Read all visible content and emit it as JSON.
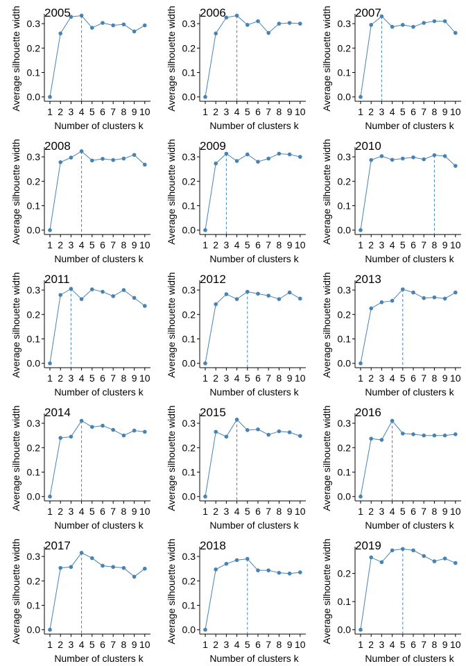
{
  "chart_data": [
    {
      "type": "line",
      "title": "2005",
      "xlabel": "Number of clusters k",
      "ylabel": "Average silhouette width",
      "x": [
        1,
        2,
        3,
        4,
        5,
        6,
        7,
        8,
        9,
        10
      ],
      "values": [
        0.0,
        0.26,
        0.328,
        0.333,
        0.283,
        0.303,
        0.293,
        0.297,
        0.268,
        0.293
      ],
      "ylim": [
        -0.015,
        0.34
      ],
      "yticks": [
        "0.0",
        "0.1",
        "0.2",
        "0.3"
      ],
      "optimal_k": 4
    },
    {
      "type": "line",
      "title": "2006",
      "xlabel": "Number of clusters k",
      "ylabel": "Average silhouette width",
      "x": [
        1,
        2,
        3,
        4,
        5,
        6,
        7,
        8,
        9,
        10
      ],
      "values": [
        0.0,
        0.26,
        0.325,
        0.333,
        0.295,
        0.31,
        0.262,
        0.3,
        0.303,
        0.3
      ],
      "ylim": [
        -0.015,
        0.34
      ],
      "yticks": [
        "0.0",
        "0.1",
        "0.2",
        "0.3"
      ],
      "optimal_k": 4
    },
    {
      "type": "line",
      "title": "2007",
      "xlabel": "Number of clusters k",
      "ylabel": "Average silhouette width",
      "x": [
        1,
        2,
        3,
        4,
        5,
        6,
        7,
        8,
        9,
        10
      ],
      "values": [
        0.0,
        0.295,
        0.33,
        0.287,
        0.295,
        0.287,
        0.303,
        0.31,
        0.31,
        0.262
      ],
      "ylim": [
        -0.015,
        0.34
      ],
      "yticks": [
        "0.0",
        "0.1",
        "0.2",
        "0.3"
      ],
      "optimal_k": 3
    },
    {
      "type": "line",
      "title": "2008",
      "xlabel": "Number of clusters k",
      "ylabel": "Average silhouette width",
      "x": [
        1,
        2,
        3,
        4,
        5,
        6,
        7,
        8,
        9,
        10
      ],
      "values": [
        0.0,
        0.278,
        0.297,
        0.323,
        0.285,
        0.292,
        0.287,
        0.293,
        0.308,
        0.268
      ],
      "ylim": [
        -0.015,
        0.34
      ],
      "yticks": [
        "0.0",
        "0.1",
        "0.2",
        "0.3"
      ],
      "optimal_k": 4
    },
    {
      "type": "line",
      "title": "2009",
      "xlabel": "Number of clusters k",
      "ylabel": "Average silhouette width",
      "x": [
        1,
        2,
        3,
        4,
        5,
        6,
        7,
        8,
        9,
        10
      ],
      "values": [
        0.0,
        0.273,
        0.313,
        0.283,
        0.31,
        0.28,
        0.293,
        0.313,
        0.31,
        0.3
      ],
      "ylim": [
        -0.015,
        0.34
      ],
      "yticks": [
        "0.0",
        "0.1",
        "0.2",
        "0.3"
      ],
      "optimal_k": 3
    },
    {
      "type": "line",
      "title": "2010",
      "xlabel": "Number of clusters k",
      "ylabel": "Average silhouette width",
      "x": [
        1,
        2,
        3,
        4,
        5,
        6,
        7,
        8,
        9,
        10
      ],
      "values": [
        0.0,
        0.287,
        0.303,
        0.288,
        0.293,
        0.298,
        0.29,
        0.307,
        0.303,
        0.263
      ],
      "ylim": [
        -0.015,
        0.34
      ],
      "yticks": [
        "0.0",
        "0.1",
        "0.2",
        "0.3"
      ],
      "optimal_k": 8
    },
    {
      "type": "line",
      "title": "2011",
      "xlabel": "Number of clusters k",
      "ylabel": "Average silhouette width",
      "x": [
        1,
        2,
        3,
        4,
        5,
        6,
        7,
        8,
        9,
        10
      ],
      "values": [
        0.0,
        0.28,
        0.305,
        0.263,
        0.303,
        0.293,
        0.275,
        0.3,
        0.268,
        0.235
      ],
      "ylim": [
        -0.015,
        0.34
      ],
      "yticks": [
        "0.0",
        "0.1",
        "0.2",
        "0.3"
      ],
      "optimal_k": 3
    },
    {
      "type": "line",
      "title": "2012",
      "xlabel": "Number of clusters k",
      "ylabel": "Average silhouette width",
      "x": [
        1,
        2,
        3,
        4,
        5,
        6,
        7,
        8,
        9,
        10
      ],
      "values": [
        0.0,
        0.242,
        0.283,
        0.263,
        0.293,
        0.285,
        0.277,
        0.263,
        0.29,
        0.265
      ],
      "ylim": [
        -0.015,
        0.34
      ],
      "yticks": [
        "0.0",
        "0.1",
        "0.2",
        "0.3"
      ],
      "optimal_k": 5
    },
    {
      "type": "line",
      "title": "2013",
      "xlabel": "Number of clusters k",
      "ylabel": "Average silhouette width",
      "x": [
        1,
        2,
        3,
        4,
        5,
        6,
        7,
        8,
        9,
        10
      ],
      "values": [
        0.0,
        0.225,
        0.25,
        0.256,
        0.303,
        0.29,
        0.267,
        0.27,
        0.265,
        0.29
      ],
      "ylim": [
        -0.015,
        0.34
      ],
      "yticks": [
        "0.0",
        "0.1",
        "0.2",
        "0.3"
      ],
      "optimal_k": 5
    },
    {
      "type": "line",
      "title": "2014",
      "xlabel": "Number of clusters k",
      "ylabel": "Average silhouette width",
      "x": [
        1,
        2,
        3,
        4,
        5,
        6,
        7,
        8,
        9,
        10
      ],
      "values": [
        0.0,
        0.24,
        0.245,
        0.31,
        0.285,
        0.29,
        0.273,
        0.25,
        0.27,
        0.265
      ],
      "ylim": [
        -0.015,
        0.34
      ],
      "yticks": [
        "0.0",
        "0.1",
        "0.2",
        "0.3"
      ],
      "optimal_k": 4
    },
    {
      "type": "line",
      "title": "2015",
      "xlabel": "Number of clusters k",
      "ylabel": "Average silhouette width",
      "x": [
        1,
        2,
        3,
        4,
        5,
        6,
        7,
        8,
        9,
        10
      ],
      "values": [
        0.0,
        0.265,
        0.245,
        0.315,
        0.272,
        0.275,
        0.253,
        0.267,
        0.263,
        0.248
      ],
      "ylim": [
        -0.015,
        0.34
      ],
      "yticks": [
        "0.0",
        "0.1",
        "0.2",
        "0.3"
      ],
      "optimal_k": 4
    },
    {
      "type": "line",
      "title": "2016",
      "xlabel": "Number of clusters k",
      "ylabel": "Average silhouette width",
      "x": [
        1,
        2,
        3,
        4,
        5,
        6,
        7,
        8,
        9,
        10
      ],
      "values": [
        0.0,
        0.237,
        0.232,
        0.31,
        0.258,
        0.255,
        0.25,
        0.25,
        0.25,
        0.255
      ],
      "ylim": [
        -0.015,
        0.34
      ],
      "yticks": [
        "0.0",
        "0.1",
        "0.2",
        "0.3"
      ],
      "optimal_k": 4
    },
    {
      "type": "line",
      "title": "2017",
      "xlabel": "Number of clusters k",
      "ylabel": "Average silhouette width",
      "x": [
        1,
        2,
        3,
        4,
        5,
        6,
        7,
        8,
        9,
        10
      ],
      "values": [
        0.0,
        0.253,
        0.257,
        0.315,
        0.293,
        0.262,
        0.257,
        0.253,
        0.217,
        0.25
      ],
      "ylim": [
        -0.015,
        0.34
      ],
      "yticks": [
        "0.0",
        "0.1",
        "0.2",
        "0.3"
      ],
      "optimal_k": 4
    },
    {
      "type": "line",
      "title": "2018",
      "xlabel": "Number of clusters k",
      "ylabel": "Average silhouette width",
      "x": [
        1,
        2,
        3,
        4,
        5,
        6,
        7,
        8,
        9,
        10
      ],
      "values": [
        0.0,
        0.247,
        0.27,
        0.285,
        0.29,
        0.243,
        0.243,
        0.233,
        0.23,
        0.235
      ],
      "ylim": [
        -0.015,
        0.34
      ],
      "yticks": [
        "0.0",
        "0.1",
        "0.2",
        "0.3"
      ],
      "optimal_k": 5
    },
    {
      "type": "line",
      "title": "2019",
      "xlabel": "Number of clusters k",
      "ylabel": "Average silhouette width",
      "x": [
        1,
        2,
        3,
        4,
        5,
        6,
        7,
        8,
        9,
        10
      ],
      "values": [
        0.0,
        0.257,
        0.24,
        0.282,
        0.287,
        0.282,
        0.262,
        0.243,
        0.253,
        0.237
      ],
      "ylim": [
        -0.013,
        0.295
      ],
      "yticks": [
        "0.0",
        "0.1",
        "0.2"
      ],
      "optimal_k": 5
    }
  ],
  "colors": {
    "series": "#4682B4",
    "axis": "#000000",
    "text": "#000000"
  }
}
